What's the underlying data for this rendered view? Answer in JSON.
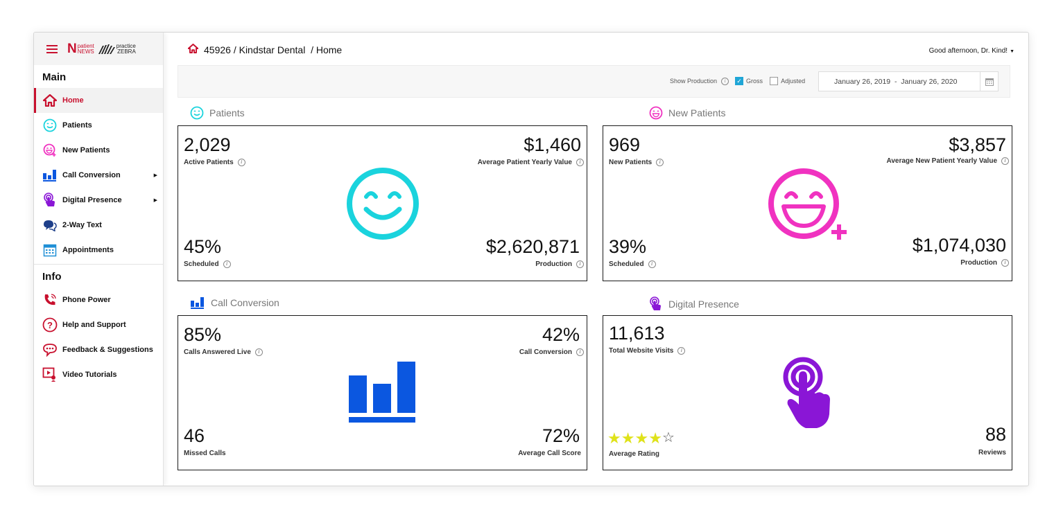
{
  "sidebar": {
    "logo_patient": "patient",
    "logo_news": "NEWS",
    "logo_practice": "practice",
    "logo_zebra": "ZEBRA",
    "main_section": "Main",
    "info_section": "Info",
    "items": {
      "home": "Home",
      "patients": "Patients",
      "new_patients": "New Patients",
      "call_conversion": "Call Conversion",
      "digital_presence": "Digital Presence",
      "two_way_text": "2-Way Text",
      "appointments": "Appointments",
      "phone_power": "Phone Power",
      "help": "Help and Support",
      "feedback": "Feedback & Suggestions",
      "video": "Video Tutorials"
    }
  },
  "header": {
    "breadcrumb": "45926 / Kindstar Dental  / Home",
    "greeting": "Good afternoon, Dr. Kind!"
  },
  "filters": {
    "show_production": "Show Production",
    "gross": "Gross",
    "adjusted": "Adjusted",
    "date_range": "January 26, 2019  -  January 26, 2020"
  },
  "patients": {
    "title": "Patients",
    "active_value": "2,029",
    "active_label": "Active Patients",
    "avg_value": "$1,460",
    "avg_label": "Average Patient Yearly Value",
    "scheduled_value": "45%",
    "scheduled_label": "Scheduled",
    "production_value": "$2,620,871",
    "production_label": "Production"
  },
  "new_patients": {
    "title": "New Patients",
    "count_value": "969",
    "count_label": "New Patients",
    "avg_value": "$3,857",
    "avg_label": "Average New Patient Yearly Value",
    "scheduled_value": "39%",
    "scheduled_label": "Scheduled",
    "production_value": "$1,074,030",
    "production_label": "Production"
  },
  "call_conversion": {
    "title": "Call Conversion",
    "answered_value": "85%",
    "answered_label": "Calls Answered Live",
    "conversion_value": "42%",
    "conversion_label": "Call Conversion",
    "missed_value": "46",
    "missed_label": "Missed Calls",
    "score_value": "72%",
    "score_label": "Average Call Score"
  },
  "digital_presence": {
    "title": "Digital Presence",
    "visits_value": "11,613",
    "visits_label": "Total Website Visits",
    "rating": 4,
    "rating_max": 5,
    "rating_label": "Average Rating",
    "reviews_value": "88",
    "reviews_label": "Reviews"
  },
  "colors": {
    "brand": "#c8102e",
    "patients": "#1ad3dd",
    "new_patients": "#f032c0",
    "call_conversion": "#0b57e0",
    "digital_presence": "#8a16d6",
    "checkbox": "#20a6d6",
    "star": "#dfe21a"
  }
}
